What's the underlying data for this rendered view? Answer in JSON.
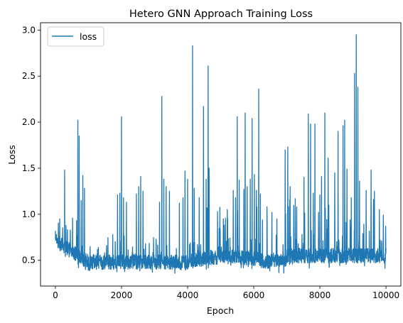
{
  "chart_data": {
    "type": "line",
    "title": "Hetero GNN Approach Training Loss",
    "xlabel": "Epoch",
    "ylabel": "Loss",
    "xlim": [
      -450,
      10450
    ],
    "ylim": [
      0.22,
      3.08
    ],
    "xticks": [
      0,
      2000,
      4000,
      6000,
      8000,
      10000
    ],
    "xtick_labels": [
      "0",
      "2000",
      "4000",
      "6000",
      "8000",
      "10000"
    ],
    "yticks": [
      0.5,
      1.0,
      1.5,
      2.0,
      2.5,
      3.0
    ],
    "ytick_labels": [
      "0.5",
      "1.0",
      "1.5",
      "2.0",
      "2.5",
      "3.0"
    ],
    "grid": false,
    "legend": {
      "position": "top-left"
    },
    "colors": {
      "series": "#1f77b4"
    },
    "series": [
      {
        "name": "loss",
        "spikes": [
          [
            0,
            0.82
          ],
          [
            30,
            0.78
          ],
          [
            280,
            1.48
          ],
          [
            320,
            0.88
          ],
          [
            450,
            0.83
          ],
          [
            520,
            0.96
          ],
          [
            640,
            0.93
          ],
          [
            680,
            2.02
          ],
          [
            720,
            1.85
          ],
          [
            780,
            1.15
          ],
          [
            830,
            1.42
          ],
          [
            880,
            1.28
          ],
          [
            1300,
            0.64
          ],
          [
            1550,
            0.66
          ],
          [
            1880,
            1.21
          ],
          [
            1950,
            1.23
          ],
          [
            2000,
            2.06
          ],
          [
            2060,
            1.18
          ],
          [
            2150,
            1.13
          ],
          [
            2450,
            1.22
          ],
          [
            2520,
            1.3
          ],
          [
            2580,
            1.41
          ],
          [
            2650,
            1.25
          ],
          [
            3150,
            1.13
          ],
          [
            3220,
            2.28
          ],
          [
            3280,
            1.38
          ],
          [
            3350,
            1.3
          ],
          [
            3450,
            1.25
          ],
          [
            3750,
            1.12
          ],
          [
            3860,
            1.18
          ],
          [
            3920,
            1.47
          ],
          [
            4000,
            1.38
          ],
          [
            4150,
            2.83
          ],
          [
            4200,
            1.28
          ],
          [
            4350,
            1.18
          ],
          [
            4480,
            2.17
          ],
          [
            4560,
            1.38
          ],
          [
            4620,
            2.61
          ],
          [
            4650,
            1.5
          ],
          [
            5100,
            0.88
          ],
          [
            5200,
            1.05
          ],
          [
            5380,
            1.26
          ],
          [
            5450,
            1.18
          ],
          [
            5500,
            2.06
          ],
          [
            5560,
            1.37
          ],
          [
            5700,
            1.27
          ],
          [
            5740,
            2.1
          ],
          [
            5800,
            1.3
          ],
          [
            5950,
            2.04
          ],
          [
            6020,
            1.43
          ],
          [
            6080,
            1.26
          ],
          [
            6150,
            2.36
          ],
          [
            6200,
            1.22
          ],
          [
            6400,
            1.08
          ],
          [
            6550,
            1.02
          ],
          [
            6700,
            0.95
          ],
          [
            6950,
            1.7
          ],
          [
            7030,
            1.73
          ],
          [
            7100,
            1.3
          ],
          [
            7300,
            1.08
          ],
          [
            7520,
            1.4
          ],
          [
            7650,
            2.09
          ],
          [
            7720,
            1.98
          ],
          [
            7800,
            1.23
          ],
          [
            7850,
            1.98
          ],
          [
            8000,
            1.21
          ],
          [
            8050,
            1.41
          ],
          [
            8150,
            2.1
          ],
          [
            8250,
            1.61
          ],
          [
            8450,
            1.45
          ],
          [
            8550,
            1.9
          ],
          [
            8700,
            1.96
          ],
          [
            8750,
            2.02
          ],
          [
            8820,
            1.49
          ],
          [
            8950,
            1.18
          ],
          [
            9050,
            2.53
          ],
          [
            9100,
            2.95
          ],
          [
            9150,
            2.38
          ],
          [
            9200,
            1.36
          ],
          [
            9400,
            1.26
          ],
          [
            9550,
            1.48
          ],
          [
            9650,
            1.25
          ],
          [
            9800,
            1.05
          ],
          [
            9920,
            0.99
          ],
          [
            10000,
            0.63
          ]
        ]
      }
    ]
  }
}
